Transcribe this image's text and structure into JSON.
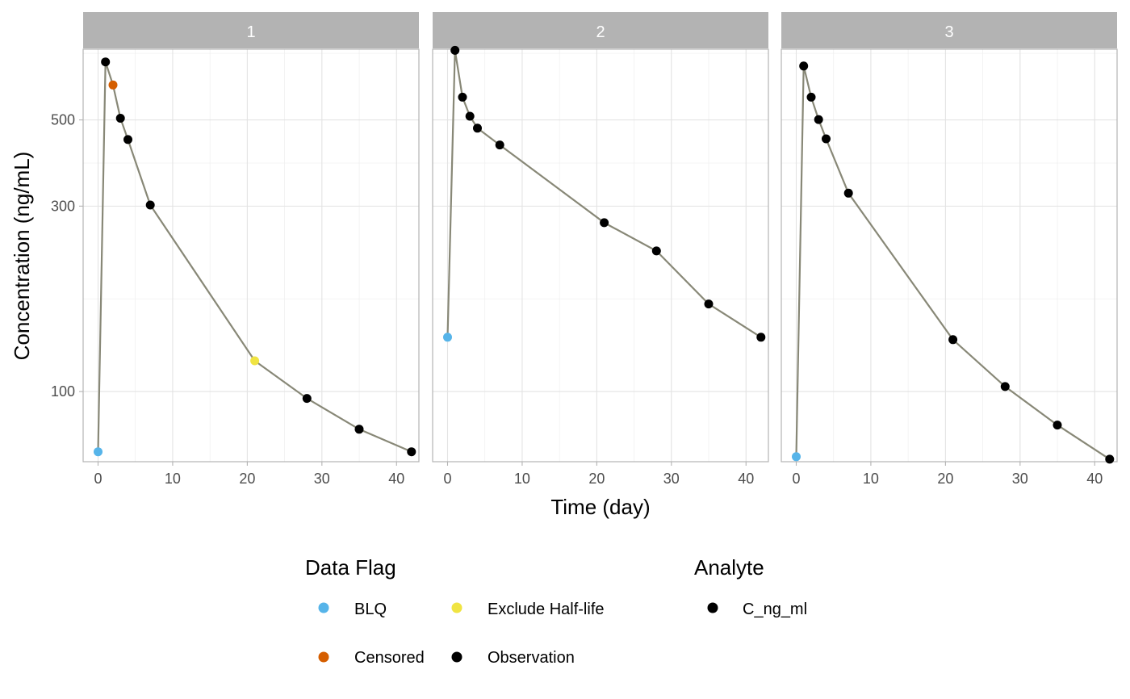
{
  "chart_data": {
    "type": "line",
    "facet_by": "panel",
    "xlabel": "Time (day)",
    "ylabel": "Concentration (ng/mL)",
    "y_scale": "log",
    "xlim": [
      -2,
      43
    ],
    "ylim": [
      66,
      760
    ],
    "x_ticks": [
      0,
      10,
      20,
      30,
      40
    ],
    "y_ticks": [
      100,
      300,
      500
    ],
    "grid": true,
    "line_color": "#888877",
    "panels": [
      {
        "label": "1",
        "points": [
          {
            "x": 0,
            "y": 70,
            "flag": "BLQ"
          },
          {
            "x": 1,
            "y": 705,
            "flag": "Observation"
          },
          {
            "x": 2,
            "y": 615,
            "flag": "Censored"
          },
          {
            "x": 3,
            "y": 505,
            "flag": "Observation"
          },
          {
            "x": 4,
            "y": 445,
            "flag": "Observation"
          },
          {
            "x": 7,
            "y": 302,
            "flag": "Observation"
          },
          {
            "x": 21,
            "y": 120,
            "flag": "Exclude Half-life"
          },
          {
            "x": 28,
            "y": 96,
            "flag": "Observation"
          },
          {
            "x": 35,
            "y": 80,
            "flag": "Observation"
          },
          {
            "x": 42,
            "y": 70,
            "flag": "Observation"
          }
        ]
      },
      {
        "label": "2",
        "points": [
          {
            "x": 0,
            "y": 138,
            "flag": "BLQ"
          },
          {
            "x": 1,
            "y": 755,
            "flag": "Observation"
          },
          {
            "x": 2,
            "y": 572,
            "flag": "Observation"
          },
          {
            "x": 3,
            "y": 511,
            "flag": "Observation"
          },
          {
            "x": 4,
            "y": 476,
            "flag": "Observation"
          },
          {
            "x": 7,
            "y": 431,
            "flag": "Observation"
          },
          {
            "x": 21,
            "y": 272,
            "flag": "Observation"
          },
          {
            "x": 28,
            "y": 230,
            "flag": "Observation"
          },
          {
            "x": 35,
            "y": 168,
            "flag": "Observation"
          },
          {
            "x": 42,
            "y": 138,
            "flag": "Observation"
          }
        ]
      },
      {
        "label": "3",
        "points": [
          {
            "x": 0,
            "y": 68,
            "flag": "BLQ"
          },
          {
            "x": 1,
            "y": 688,
            "flag": "Observation"
          },
          {
            "x": 2,
            "y": 572,
            "flag": "Observation"
          },
          {
            "x": 3,
            "y": 501,
            "flag": "Observation"
          },
          {
            "x": 4,
            "y": 447,
            "flag": "Observation"
          },
          {
            "x": 7,
            "y": 324,
            "flag": "Observation"
          },
          {
            "x": 21,
            "y": 136,
            "flag": "Observation"
          },
          {
            "x": 28,
            "y": 103,
            "flag": "Observation"
          },
          {
            "x": 35,
            "y": 82,
            "flag": "Observation"
          },
          {
            "x": 42,
            "y": 67,
            "flag": "Observation"
          }
        ]
      }
    ],
    "legends": [
      {
        "title": "Data Flag",
        "entries": [
          {
            "label": "BLQ",
            "color": "#56B4E9"
          },
          {
            "label": "Exclude Half-life",
            "color": "#F0E442"
          },
          {
            "label": "Censored",
            "color": "#D55E00"
          },
          {
            "label": "Observation",
            "color": "#000000"
          }
        ]
      },
      {
        "title": "Analyte",
        "entries": [
          {
            "label": "C_ng_ml",
            "color": "#000000"
          }
        ]
      }
    ],
    "legend_position": "bottom"
  }
}
